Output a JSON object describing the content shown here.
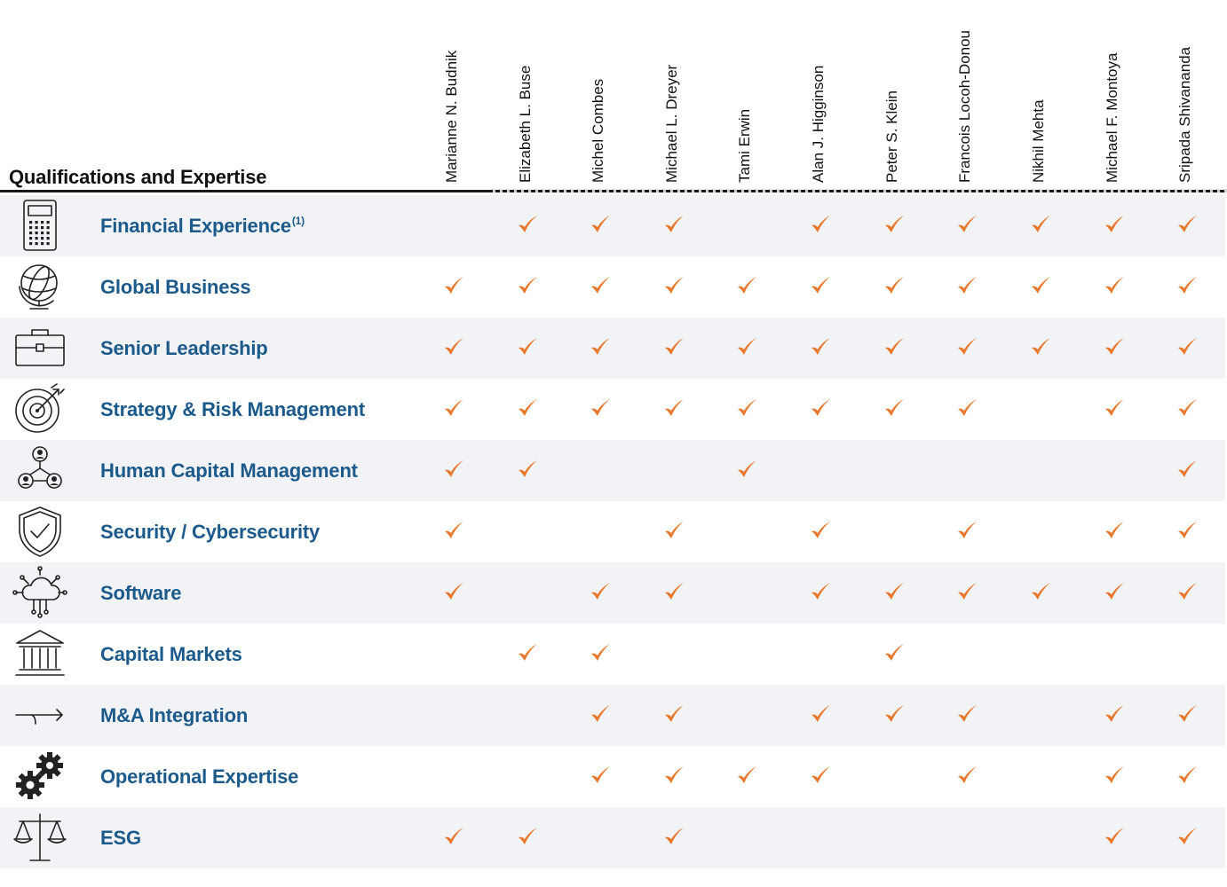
{
  "section_title": "Qualifications and Expertise",
  "accent_check_color": "#e8782b",
  "label_color": "#1b5a8a",
  "directors": [
    "Marianne N. Budnik",
    "Elizabeth L. Buse",
    "Michel Combes",
    "Michael L. Dreyer",
    "Tami Erwin",
    "Alan J. Higginson",
    "Peter S. Klein",
    "Francois Locoh-Donou",
    "Nikhil Mehta",
    "Michael F. Montoya",
    "Sripada Shivananda"
  ],
  "qualifications": [
    {
      "label": "Financial Experience",
      "footnote": "(1)",
      "icon": "calculator-icon",
      "checks": [
        false,
        true,
        true,
        true,
        false,
        true,
        true,
        true,
        true,
        true,
        true
      ]
    },
    {
      "label": "Global Business",
      "icon": "globe-icon",
      "checks": [
        true,
        true,
        true,
        true,
        true,
        true,
        true,
        true,
        true,
        true,
        true
      ]
    },
    {
      "label": "Senior Leadership",
      "icon": "briefcase-icon",
      "checks": [
        true,
        true,
        true,
        true,
        true,
        true,
        true,
        true,
        true,
        true,
        true
      ]
    },
    {
      "label": "Strategy & Risk Management",
      "icon": "target-icon",
      "checks": [
        true,
        true,
        true,
        true,
        true,
        true,
        true,
        true,
        false,
        true,
        true
      ]
    },
    {
      "label": "Human Capital Management",
      "icon": "people-network-icon",
      "checks": [
        true,
        true,
        false,
        false,
        true,
        false,
        false,
        false,
        false,
        false,
        true
      ]
    },
    {
      "label": "Security / Cybersecurity",
      "icon": "shield-check-icon",
      "checks": [
        true,
        false,
        false,
        true,
        false,
        true,
        false,
        true,
        false,
        true,
        true
      ]
    },
    {
      "label": "Software",
      "icon": "cloud-network-icon",
      "checks": [
        true,
        false,
        true,
        true,
        false,
        true,
        true,
        true,
        true,
        true,
        true
      ]
    },
    {
      "label": "Capital Markets",
      "icon": "bank-building-icon",
      "checks": [
        false,
        true,
        true,
        false,
        false,
        false,
        true,
        false,
        false,
        false,
        false
      ]
    },
    {
      "label": "M&A Integration",
      "icon": "merge-arrow-icon",
      "checks": [
        false,
        false,
        true,
        true,
        false,
        true,
        true,
        true,
        false,
        true,
        true
      ]
    },
    {
      "label": "Operational Expertise",
      "icon": "gears-icon",
      "checks": [
        false,
        false,
        true,
        true,
        true,
        true,
        false,
        true,
        false,
        true,
        true
      ]
    },
    {
      "label": "ESG",
      "icon": "balance-scale-icon",
      "checks": [
        true,
        true,
        false,
        true,
        false,
        false,
        false,
        false,
        false,
        true,
        true
      ]
    }
  ]
}
